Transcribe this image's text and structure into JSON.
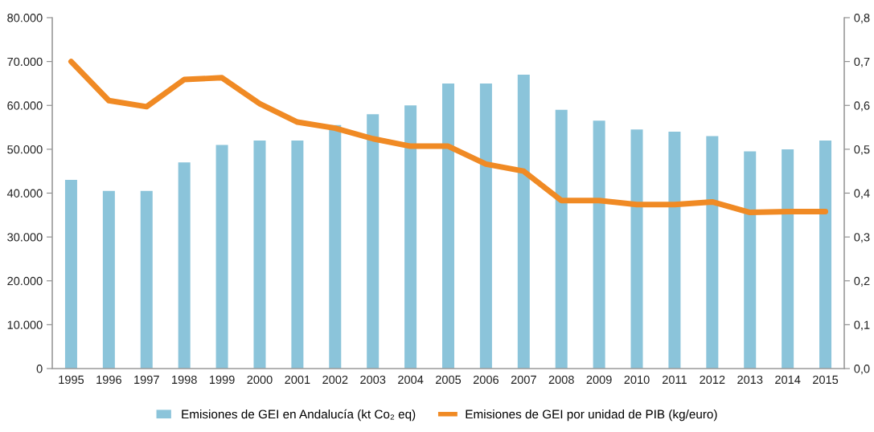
{
  "chart_data": {
    "type": "bar",
    "categories": [
      "1995",
      "1996",
      "1997",
      "1998",
      "1999",
      "2000",
      "2001",
      "2002",
      "2003",
      "2004",
      "2005",
      "2006",
      "2007",
      "2008",
      "2009",
      "2010",
      "2011",
      "2012",
      "2013",
      "2014",
      "2015"
    ],
    "series": [
      {
        "name": "Emisiones de GEI en Andalucía (kt Co₂ eq)",
        "color": "#8bc4da",
        "values": [
          43000,
          40500,
          40500,
          47000,
          51000,
          52000,
          52000,
          55500,
          58000,
          60000,
          65000,
          65000,
          67000,
          59000,
          56500,
          54500,
          54000,
          53000,
          49500,
          50000,
          52000
        ]
      },
      {
        "name": "Emisiones de GEI por unidad de PIB (kg/euro)",
        "type": "line",
        "axis": "y2",
        "color": "#f08a24",
        "values": [
          0.7,
          0.611,
          0.597,
          0.659,
          0.663,
          0.604,
          0.562,
          0.548,
          0.524,
          0.507,
          0.507,
          0.466,
          0.45,
          0.383,
          0.383,
          0.374,
          0.374,
          0.38,
          0.356,
          0.358,
          0.358
        ]
      }
    ],
    "ylim": [
      0,
      80000
    ],
    "yticks": [
      0,
      {
        "value": 10000,
        "label": "10.000"
      },
      {
        "value": 20000,
        "label": "20.000"
      },
      {
        "value": 30000,
        "label": "30.000"
      },
      {
        "value": 40000,
        "label": "40.000"
      },
      {
        "value": 50000,
        "label": "50.000"
      },
      {
        "value": 60000,
        "label": "60.000"
      },
      {
        "value": 70000,
        "label": "70.000"
      },
      {
        "value": 80000,
        "label": "80.000"
      }
    ],
    "y2lim": [
      0,
      0.8
    ],
    "y2ticks": [
      {
        "value": 0,
        "label": "0,0"
      },
      {
        "value": 0.1,
        "label": "0,1"
      },
      {
        "value": 0.2,
        "label": "0,2"
      },
      {
        "value": 0.3,
        "label": "0,3"
      },
      {
        "value": 0.4,
        "label": "0,4"
      },
      {
        "value": 0.5,
        "label": "0,5"
      },
      {
        "value": 0.6,
        "label": "0,6"
      },
      {
        "value": 0.7,
        "label": "0,7"
      },
      {
        "value": 0.8,
        "label": "0,8"
      }
    ],
    "grid": false,
    "legend": "bottom",
    "line_style": "solid",
    "marker": "none"
  }
}
